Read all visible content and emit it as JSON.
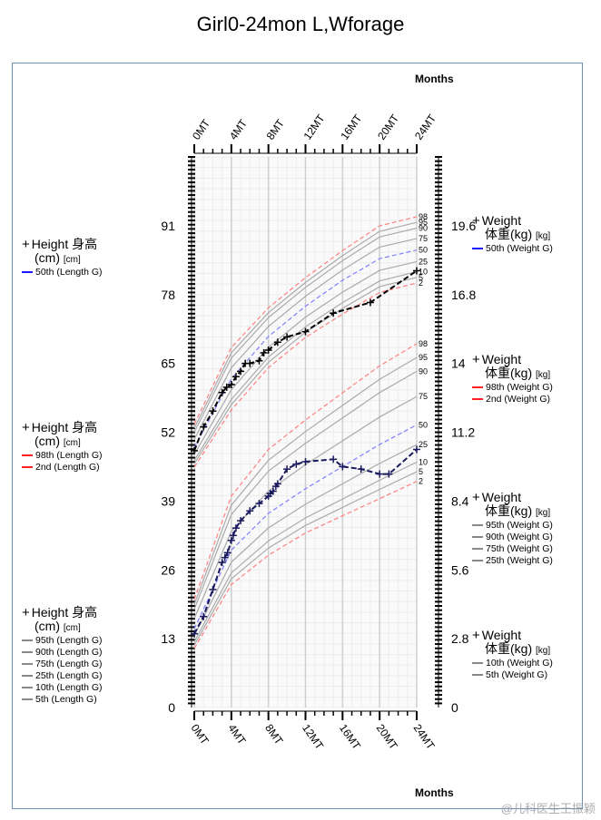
{
  "title": "Girl0-24mon L,Wforage",
  "axis_top_label": "Months",
  "axis_bottom_label": "Months",
  "watermark": "@儿科医生王振颖",
  "x_ticks": [
    "0MT",
    "4MT",
    "8MT",
    "12MT",
    "16MT",
    "20MT",
    "24MT"
  ],
  "left_ticks": [
    "91",
    "78",
    "65",
    "52",
    "39",
    "26",
    "13",
    "0"
  ],
  "right_ticks": [
    "19.6",
    "16.8",
    "14",
    "11.2",
    "8.4",
    "5.6",
    "2.8",
    "0"
  ],
  "legends": [
    {
      "symbol": "+",
      "title_line1": "Height 身高",
      "title_line2": "(cm)",
      "unit": "[cm]",
      "items": [
        {
          "label": "50th (Length G)",
          "color": "#1a1aff",
          "style": "dash"
        }
      ]
    },
    {
      "symbol": "+",
      "title_line1": "Height 身高",
      "title_line2": "(cm)",
      "unit": "[cm]",
      "items": [
        {
          "label": "98th (Length G)",
          "color": "#ff2020",
          "style": "dash"
        },
        {
          "label": "2nd (Length G)",
          "color": "#ff2020",
          "style": "dash"
        }
      ]
    },
    {
      "symbol": "+",
      "title_line1": "Height 身高",
      "title_line2": "(cm)",
      "unit": "[cm]",
      "items": [
        {
          "label": "95th (Length G)",
          "color": "#888888",
          "style": "solid"
        },
        {
          "label": "90th (Length G)",
          "color": "#888888",
          "style": "solid"
        },
        {
          "label": "75th (Length G)",
          "color": "#888888",
          "style": "solid"
        },
        {
          "label": "25th (Length G)",
          "color": "#888888",
          "style": "solid"
        },
        {
          "label": "10th (Length G)",
          "color": "#888888",
          "style": "solid"
        },
        {
          "label": "5th (Length G)",
          "color": "#888888",
          "style": "solid"
        }
      ]
    },
    {
      "symbol": "+",
      "title_line1": "Weight",
      "title_line2": "体重(kg)",
      "unit": "[kg]",
      "items": [
        {
          "label": "50th (Weight G)",
          "color": "#1a1aff",
          "style": "dash"
        }
      ]
    },
    {
      "symbol": "+",
      "title_line1": "Weight",
      "title_line2": "体重(kg)",
      "unit": "[kg]",
      "items": [
        {
          "label": "98th (Weight G)",
          "color": "#ff2020",
          "style": "dash"
        },
        {
          "label": "2nd (Weight G)",
          "color": "#ff2020",
          "style": "dash"
        }
      ]
    },
    {
      "symbol": "+",
      "title_line1": "Weight",
      "title_line2": "体重(kg)",
      "unit": "[kg]",
      "items": [
        {
          "label": "95th (Weight G)",
          "color": "#888888",
          "style": "solid"
        },
        {
          "label": "90th (Weight G)",
          "color": "#888888",
          "style": "solid"
        },
        {
          "label": "75th (Weight G)",
          "color": "#888888",
          "style": "solid"
        },
        {
          "label": "25th (Weight G)",
          "color": "#888888",
          "style": "solid"
        }
      ]
    },
    {
      "symbol": "+",
      "title_line1": "Weight",
      "title_line2": "体重(kg)",
      "unit": "[kg]",
      "items": [
        {
          "label": "10th (Weight G)",
          "color": "#888888",
          "style": "solid"
        },
        {
          "label": "5th (Weight G)",
          "color": "#888888",
          "style": "solid"
        }
      ]
    }
  ],
  "chart_data": {
    "type": "line",
    "title": "Girl0-24mon L,Wforage",
    "xlabel": "Months",
    "x_range": [
      0,
      24
    ],
    "left_axis": {
      "label": "Height 身高 (cm)",
      "range": [
        0,
        104
      ]
    },
    "right_axis": {
      "label": "Weight 体重(kg)",
      "range": [
        0,
        22.4
      ]
    },
    "grid": true,
    "length_percentiles": {
      "labels": [
        "98",
        "95",
        "90",
        "75",
        "50",
        "25",
        "10",
        "5",
        "2"
      ],
      "months": [
        0,
        4,
        8,
        12,
        16,
        20,
        24
      ],
      "p98": [
        53.5,
        68.0,
        75.5,
        81.2,
        86.3,
        91.0,
        92.7
      ],
      "p50": [
        49.1,
        62.1,
        70.1,
        75.8,
        80.7,
        84.8,
        86.4
      ],
      "p2": [
        45.4,
        56.2,
        64.2,
        69.9,
        74.3,
        78.4,
        80.2
      ]
    },
    "weight_percentiles": {
      "labels": [
        "98",
        "95",
        "90",
        "75",
        "50",
        "25",
        "10",
        "5",
        "2"
      ],
      "months": [
        0,
        4,
        8,
        12,
        16,
        20,
        24
      ],
      "p98": [
        4.4,
        8.6,
        10.5,
        11.7,
        12.8,
        13.9,
        14.8
      ],
      "p50": [
        3.2,
        6.4,
        7.9,
        8.9,
        9.8,
        10.7,
        11.5
      ],
      "p2": [
        2.4,
        5.0,
        6.2,
        7.1,
        7.8,
        8.5,
        9.2
      ]
    },
    "series": [
      {
        "name": "Height 身高",
        "axis": "left",
        "x": [
          0,
          1,
          2,
          3,
          3.5,
          4,
          4.5,
          5,
          5.5,
          6,
          7,
          7.5,
          8,
          9,
          10,
          12,
          15,
          19,
          24
        ],
        "y": [
          48.5,
          53.0,
          56.0,
          59.5,
          60.5,
          61.0,
          62.5,
          63.5,
          65.0,
          65.0,
          65.5,
          67.0,
          67.5,
          69.0,
          70.0,
          71.0,
          74.5,
          76.5,
          82.5
        ]
      },
      {
        "name": "Weight 体重(kg)",
        "axis": "right",
        "x": [
          0,
          1,
          2,
          3,
          3.3,
          3.6,
          4,
          4.2,
          4.5,
          5,
          6,
          7,
          8,
          8.2,
          8.5,
          8.8,
          9,
          10,
          11,
          12,
          15,
          16,
          18,
          20,
          21,
          24
        ],
        "y": [
          3.0,
          3.7,
          4.8,
          5.9,
          6.1,
          6.3,
          6.8,
          7.0,
          7.3,
          7.6,
          8.0,
          8.3,
          8.6,
          8.7,
          8.8,
          9.0,
          9.1,
          9.7,
          9.9,
          10.0,
          10.1,
          9.8,
          9.7,
          9.5,
          9.5,
          10.5
        ]
      }
    ]
  }
}
